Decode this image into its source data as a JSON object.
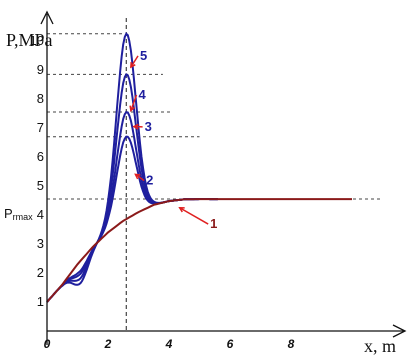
{
  "chart_data": {
    "type": "line",
    "title": "",
    "ylabel": "P,MPa",
    "xlabel": "x, m",
    "xlim": [
      0,
      12.2
    ],
    "ylim": [
      0,
      10.85
    ],
    "x_ticks": [
      {
        "value": 0,
        "label": "0"
      },
      {
        "value": 2,
        "label": "2"
      },
      {
        "value": 4,
        "label": "4"
      },
      {
        "value": 6,
        "label": "6"
      },
      {
        "value": 8,
        "label": "8"
      }
    ],
    "y_ticks": [
      {
        "value": 1,
        "label": "1"
      },
      {
        "value": 2,
        "label": "2"
      },
      {
        "value": 3,
        "label": "3"
      },
      {
        "value": 4,
        "label": "4"
      },
      {
        "value": 5,
        "label": "5"
      },
      {
        "value": 6,
        "label": "6"
      },
      {
        "value": 7,
        "label": "7"
      },
      {
        "value": 8,
        "label": "8"
      },
      {
        "value": 9,
        "label": "9"
      },
      {
        "value": 10,
        "label": "10"
      }
    ],
    "prmax": {
      "label_main": "P",
      "label_sub": "rmax",
      "value": 4.55
    },
    "x_marker": 2.6,
    "ref_lines": [
      {
        "y": 10.25,
        "x_end": 2.55
      },
      {
        "y": 8.85,
        "x_end": 3.8
      },
      {
        "y": 7.55,
        "x_end": 4.1
      },
      {
        "y": 6.7,
        "x_end": 5.0
      },
      {
        "y": 4.55,
        "x_end": 11.0
      }
    ],
    "colors": {
      "base": "#8b1a1a",
      "peaks": "#1f1f9e",
      "arrow": "#e02020",
      "axis": "#111111",
      "grid": "#444444"
    },
    "series": [
      {
        "label": "1",
        "color": "#8b1a1a",
        "baseline": true,
        "x": [
          0,
          0.5,
          1.0,
          1.5,
          2.0,
          2.5,
          3.0,
          3.5,
          4.0,
          4.5,
          5.0,
          6.0,
          8.0,
          10.0
        ],
        "y": [
          1.0,
          1.6,
          2.3,
          2.9,
          3.4,
          3.8,
          4.1,
          4.35,
          4.48,
          4.54,
          4.55,
          4.55,
          4.55,
          4.55
        ],
        "label_pos": [
          5.35,
          3.55
        ],
        "arrow_to": [
          4.35,
          4.25
        ]
      },
      {
        "label": "2",
        "color": "#1f1f9e",
        "peak": 6.7,
        "label_pos": [
          3.25,
          5.05
        ],
        "arrow_to": [
          2.9,
          5.4
        ]
      },
      {
        "label": "3",
        "color": "#1f1f9e",
        "peak": 7.55,
        "label_pos": [
          3.2,
          6.9
        ],
        "arrow_to": [
          2.85,
          7.05
        ]
      },
      {
        "label": "4",
        "color": "#1f1f9e",
        "peak": 8.85,
        "label_pos": [
          3.0,
          8.0
        ],
        "arrow_to": [
          2.75,
          7.6
        ]
      },
      {
        "label": "5",
        "color": "#1f1f9e",
        "peak": 10.25,
        "label_pos": [
          3.05,
          9.35
        ],
        "arrow_to": [
          2.75,
          9.1
        ]
      }
    ]
  }
}
